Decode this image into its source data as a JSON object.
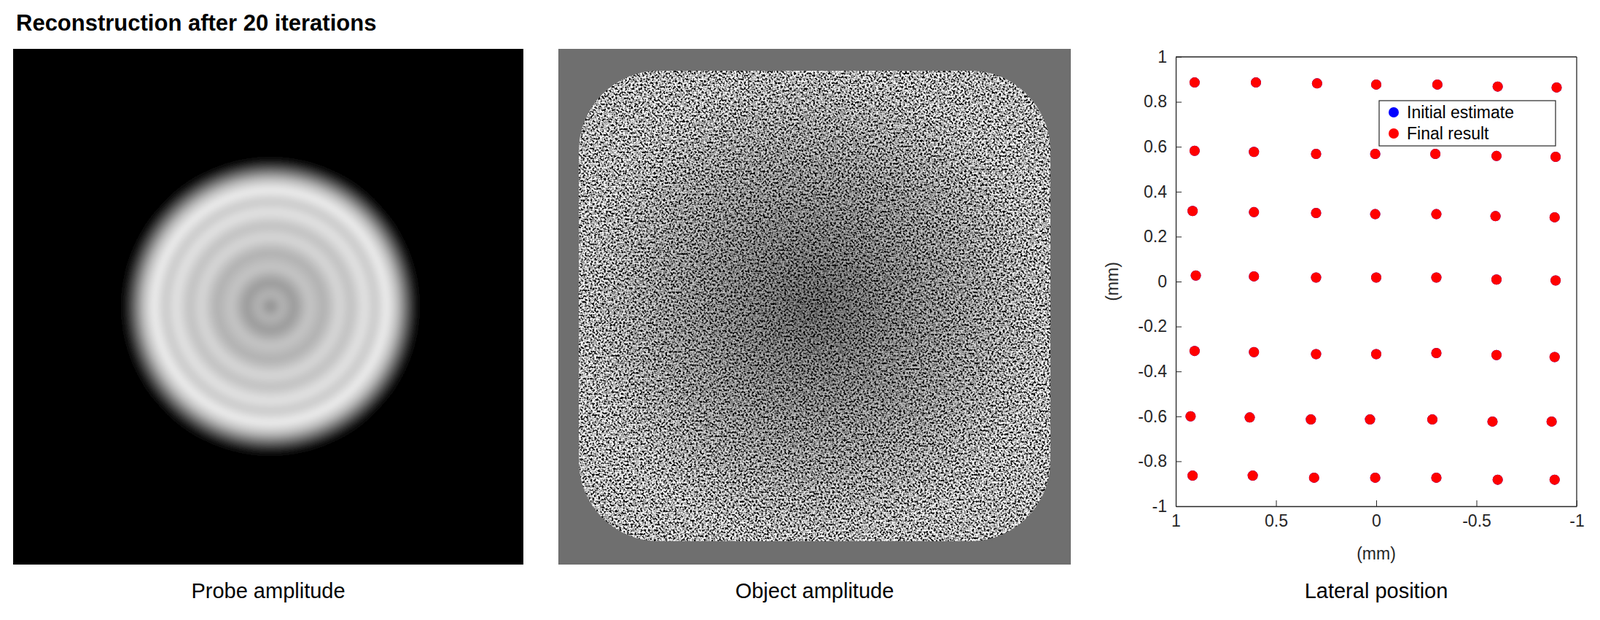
{
  "title": "Reconstruction after 20 iterations",
  "chart_data": [
    {
      "type": "image",
      "caption": "Probe amplitude"
    },
    {
      "type": "image",
      "caption": "Object amplitude"
    },
    {
      "type": "scatter",
      "caption": "Lateral position",
      "x_label": "(mm)",
      "y_label": "(mm)",
      "xlim": [
        1,
        -1
      ],
      "xticks": [
        1,
        0.5,
        0,
        -0.5,
        -1
      ],
      "ylim": [
        -1,
        1
      ],
      "yticks": [
        -1,
        -0.8,
        -0.6,
        -0.4,
        -0.2,
        0,
        0.2,
        0.4,
        0.6,
        0.8,
        1
      ],
      "legend": "upper right",
      "marker": "circle",
      "series": [
        {
          "name": "Initial estimate",
          "color": "#0000ff",
          "x": [
            0.906,
            0.6,
            0.295,
            0,
            -0.305,
            -0.606,
            -0.9,
            0.906,
            0.61,
            0.3,
            0.005,
            -0.295,
            -0.6,
            -0.895,
            0.916,
            0.61,
            0.3,
            0.005,
            -0.3,
            -0.595,
            -0.89,
            0.9,
            0.61,
            0.3,
            0,
            -0.3,
            -0.6,
            -0.895,
            0.906,
            0.61,
            0.3,
            0,
            -0.3,
            -0.6,
            -0.89,
            0.926,
            0.631,
            0.326,
            0.031,
            -0.28,
            -0.58,
            -0.875,
            0.916,
            0.616,
            0.31,
            0.005,
            -0.3,
            -0.606,
            -0.89
          ],
          "y": [
            0.886,
            0.886,
            0.882,
            0.877,
            0.877,
            0.868,
            0.864,
            0.582,
            0.577,
            0.568,
            0.568,
            0.568,
            0.559,
            0.555,
            0.314,
            0.309,
            0.305,
            0.3,
            0.3,
            0.291,
            0.286,
            0.027,
            0.023,
            0.018,
            0.018,
            0.018,
            0.009,
            0.005,
            -0.309,
            -0.314,
            -0.323,
            -0.323,
            -0.318,
            -0.327,
            -0.336,
            -0.6,
            -0.605,
            -0.614,
            -0.614,
            -0.614,
            -0.623,
            -0.623,
            -0.864,
            -0.864,
            -0.873,
            -0.873,
            -0.873,
            -0.882,
            -0.882
          ]
        },
        {
          "name": "Final result",
          "color": "#ff0000",
          "x": [
            0.906,
            0.6,
            0.295,
            0,
            -0.305,
            -0.606,
            -0.9,
            0.906,
            0.61,
            0.3,
            0.005,
            -0.295,
            -0.6,
            -0.895,
            0.916,
            0.61,
            0.3,
            0.005,
            -0.3,
            -0.595,
            -0.89,
            0.9,
            0.61,
            0.3,
            0,
            -0.3,
            -0.6,
            -0.895,
            0.906,
            0.61,
            0.3,
            0,
            -0.3,
            -0.6,
            -0.89,
            0.926,
            0.631,
            0.326,
            0.031,
            -0.28,
            -0.58,
            -0.875,
            0.916,
            0.616,
            0.31,
            0.005,
            -0.3,
            -0.606,
            -0.89
          ],
          "y": [
            0.886,
            0.886,
            0.882,
            0.877,
            0.877,
            0.868,
            0.864,
            0.582,
            0.577,
            0.568,
            0.568,
            0.568,
            0.559,
            0.555,
            0.314,
            0.309,
            0.305,
            0.3,
            0.3,
            0.291,
            0.286,
            0.027,
            0.023,
            0.018,
            0.018,
            0.018,
            0.009,
            0.005,
            -0.309,
            -0.314,
            -0.323,
            -0.323,
            -0.318,
            -0.327,
            -0.336,
            -0.6,
            -0.605,
            -0.614,
            -0.614,
            -0.614,
            -0.623,
            -0.623,
            -0.864,
            -0.864,
            -0.873,
            -0.873,
            -0.873,
            -0.882,
            -0.882
          ]
        }
      ]
    }
  ]
}
